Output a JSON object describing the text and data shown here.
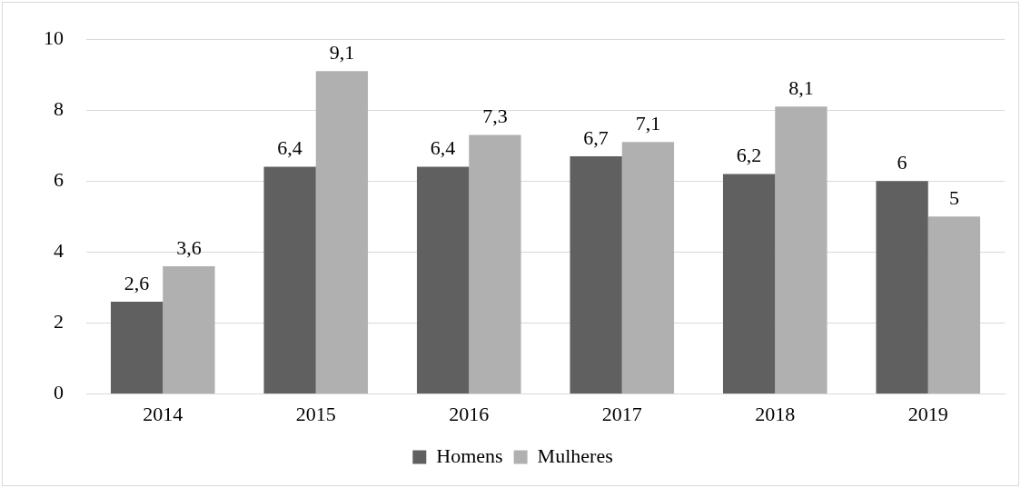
{
  "chart_data": {
    "type": "bar",
    "categories": [
      "2014",
      "2015",
      "2016",
      "2017",
      "2018",
      "2019"
    ],
    "series": [
      {
        "name": "Homens",
        "color": "#606060",
        "values": [
          2.6,
          6.4,
          6.4,
          6.7,
          6.2,
          6
        ],
        "value_labels": [
          "2,6",
          "6,4",
          "6,4",
          "6,7",
          "6,2",
          "6"
        ]
      },
      {
        "name": "Mulheres",
        "color": "#b0b0b0",
        "values": [
          3.6,
          9.1,
          7.3,
          7.1,
          8.1,
          5
        ],
        "value_labels": [
          "3,6",
          "9,1",
          "7,3",
          "7,1",
          "8,1",
          "5"
        ]
      }
    ],
    "ylim": [
      0,
      10
    ],
    "yticks": [
      0,
      2,
      4,
      6,
      8,
      10
    ],
    "grid": "y",
    "legend": "bottom"
  }
}
